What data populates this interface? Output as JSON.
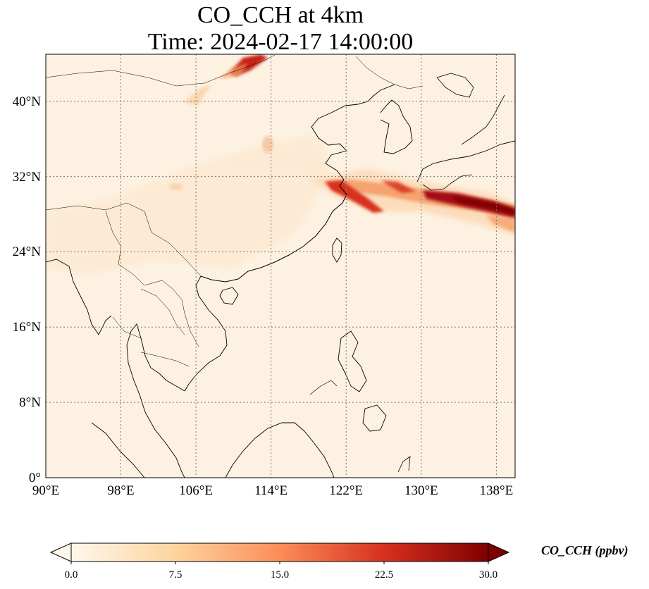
{
  "title": {
    "line1": "CO_CCH at 4km",
    "line2": "Time: 2024-02-17 14:00:00"
  },
  "map": {
    "lon_ticks": [
      "90°E",
      "98°E",
      "106°E",
      "114°E",
      "122°E",
      "130°E",
      "138°E"
    ],
    "lat_ticks": [
      "0°",
      "8°N",
      "16°N",
      "24°N",
      "32°N",
      "40°N"
    ],
    "lon_range": [
      90,
      140
    ],
    "lat_range": [
      0,
      45
    ],
    "gridlines": true,
    "field_colormap": "OrRd",
    "plume_color": "#7f0000"
  },
  "colorbar": {
    "label": "CO_CCH (ppbv)",
    "ticks": [
      "0.0",
      "7.5",
      "15.0",
      "22.5",
      "30.0"
    ],
    "min": 0,
    "max": 30,
    "extend": "both",
    "colors": [
      "#fff7ec",
      "#fdd49e",
      "#fc8d59",
      "#d7301f",
      "#7f0000"
    ]
  }
}
